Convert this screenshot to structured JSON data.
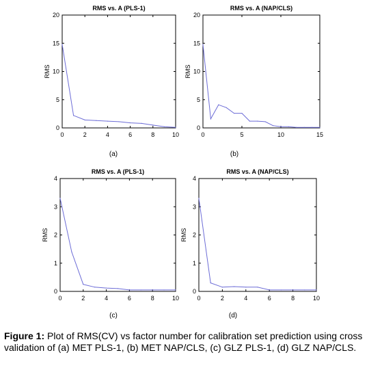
{
  "chart_data": [
    {
      "type": "line",
      "panel_label": "(a)",
      "title": "RMS vs. A (PLS-1)",
      "xlabel": "",
      "ylabel": "RMS",
      "xlim": [
        0,
        10
      ],
      "ylim": [
        0,
        20
      ],
      "xticks": [
        "0",
        "2",
        "4",
        "6",
        "8",
        "10"
      ],
      "yticks": [
        "0",
        "5",
        "10",
        "15",
        "20"
      ],
      "grid": false,
      "color": "#6b6bd6",
      "series": [
        {
          "x": [
            0,
            1,
            2,
            3,
            4,
            5,
            6,
            7,
            8,
            9,
            10
          ],
          "y": [
            14.8,
            2.2,
            1.4,
            1.3,
            1.2,
            1.1,
            0.9,
            0.8,
            0.5,
            0.2,
            0.1
          ]
        }
      ]
    },
    {
      "type": "line",
      "panel_label": "(b)",
      "title": "RMS vs. A (NAP/CLS)",
      "xlabel": "",
      "ylabel": "RMS",
      "xlim": [
        0,
        15
      ],
      "ylim": [
        0,
        20
      ],
      "xticks": [
        "0",
        "5",
        "10",
        "15"
      ],
      "yticks": [
        "0",
        "5",
        "10",
        "15",
        "20"
      ],
      "grid": false,
      "color": "#6b6bd6",
      "series": [
        {
          "x": [
            0,
            1,
            2,
            3,
            4,
            5,
            6,
            7,
            8,
            9,
            10,
            11,
            12,
            13,
            14,
            15
          ],
          "y": [
            14.8,
            1.6,
            4.1,
            3.6,
            2.6,
            2.6,
            1.2,
            1.2,
            1.1,
            0.4,
            0.2,
            0.2,
            0.1,
            0.1,
            0.1,
            0.1
          ]
        }
      ]
    },
    {
      "type": "line",
      "panel_label": "(c)",
      "title": "RMS vs. A (PLS-1)",
      "xlabel": "",
      "ylabel": "RMS",
      "xlim": [
        0,
        10
      ],
      "ylim": [
        0,
        4
      ],
      "xticks": [
        "0",
        "2",
        "4",
        "6",
        "8",
        "10"
      ],
      "yticks": [
        "0",
        "1",
        "2",
        "3",
        "4"
      ],
      "grid": false,
      "color": "#6b6bd6",
      "series": [
        {
          "x": [
            0,
            1,
            2,
            3,
            4,
            5,
            6,
            7,
            8,
            9,
            10
          ],
          "y": [
            3.3,
            1.4,
            0.25,
            0.15,
            0.12,
            0.1,
            0.05,
            0.05,
            0.05,
            0.05,
            0.05
          ]
        }
      ]
    },
    {
      "type": "line",
      "panel_label": "(d)",
      "title": "RMS vs. A (NAP/CLS)",
      "xlabel": "",
      "ylabel": "RMS",
      "xlim": [
        0,
        10
      ],
      "ylim": [
        0,
        4
      ],
      "xticks": [
        "0",
        "2",
        "4",
        "6",
        "8",
        "10"
      ],
      "yticks": [
        "0",
        "1",
        "2",
        "3",
        "4"
      ],
      "grid": false,
      "color": "#6b6bd6",
      "series": [
        {
          "x": [
            0,
            1,
            2,
            3,
            4,
            5,
            6,
            7,
            8,
            9,
            10
          ],
          "y": [
            3.3,
            0.3,
            0.15,
            0.17,
            0.15,
            0.15,
            0.05,
            0.05,
            0.05,
            0.05,
            0.05
          ]
        }
      ]
    }
  ],
  "caption": {
    "label": "Figure 1:",
    "text": " Plot of RMS(CV) vs factor number for calibration set prediction using cross validation of (a) MET PLS-1, (b) MET NAP/CLS, (c) GLZ PLS-1, (d) GLZ NAP/CLS."
  }
}
